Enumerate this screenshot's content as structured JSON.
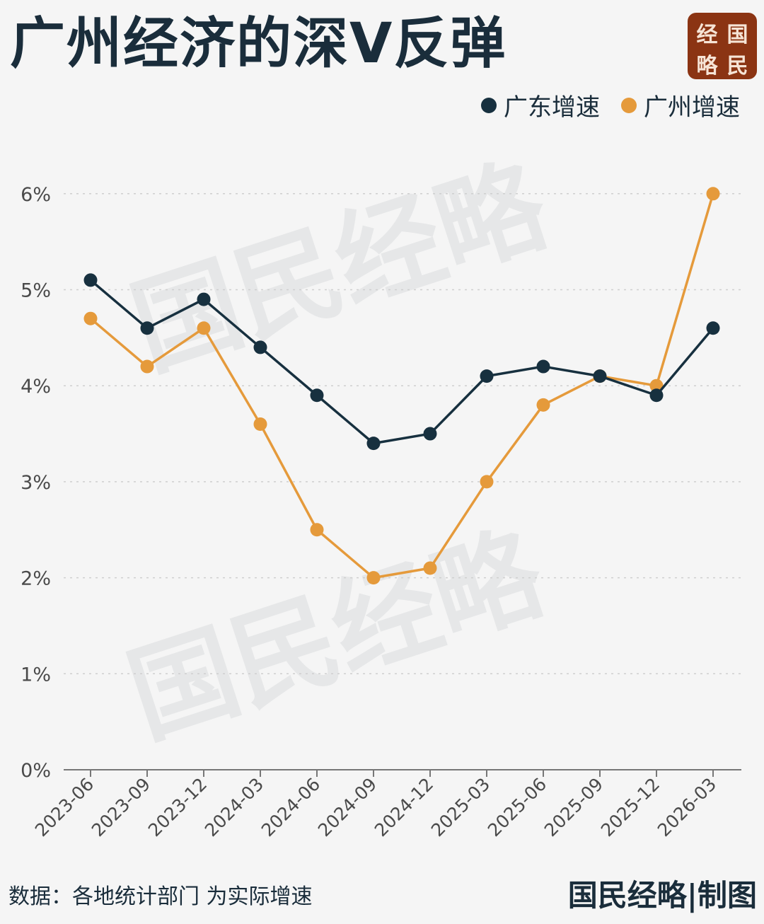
{
  "header": {
    "title": "广州经济的深V反弹",
    "logo_chars": [
      "经",
      "国",
      "略",
      "民"
    ]
  },
  "watermark": "国民经略",
  "footer": {
    "source": "数据：各地统计部门   为实际增速",
    "brand": "国民经略|制图"
  },
  "colors": {
    "guangdong": "#17303f",
    "guangzhou": "#e59a3b",
    "background": "#f5f5f5"
  },
  "chart_data": {
    "type": "line",
    "title": "广州经济的深V反弹",
    "xlabel": "",
    "ylabel": "",
    "categories": [
      "2023-06",
      "2023-09",
      "2023-12",
      "2024-03",
      "2024-06",
      "2024-09",
      "2024-12",
      "2025-03",
      "2025-06",
      "2025-09",
      "2025-12",
      "2026-03"
    ],
    "series": [
      {
        "name": "广东增速",
        "values": [
          5.1,
          4.6,
          4.9,
          4.4,
          3.9,
          3.4,
          3.5,
          4.1,
          4.2,
          4.1,
          3.9,
          4.6
        ]
      },
      {
        "name": "广州增速",
        "values": [
          4.7,
          4.2,
          4.6,
          3.6,
          2.5,
          2.0,
          2.1,
          3.0,
          3.8,
          4.1,
          4.0,
          6.0
        ]
      }
    ],
    "ylim": [
      0,
      6
    ],
    "yticks": [
      "0%",
      "1%",
      "2%",
      "3%",
      "4%",
      "5%",
      "6%"
    ],
    "grid": true,
    "legend": "top-right"
  }
}
